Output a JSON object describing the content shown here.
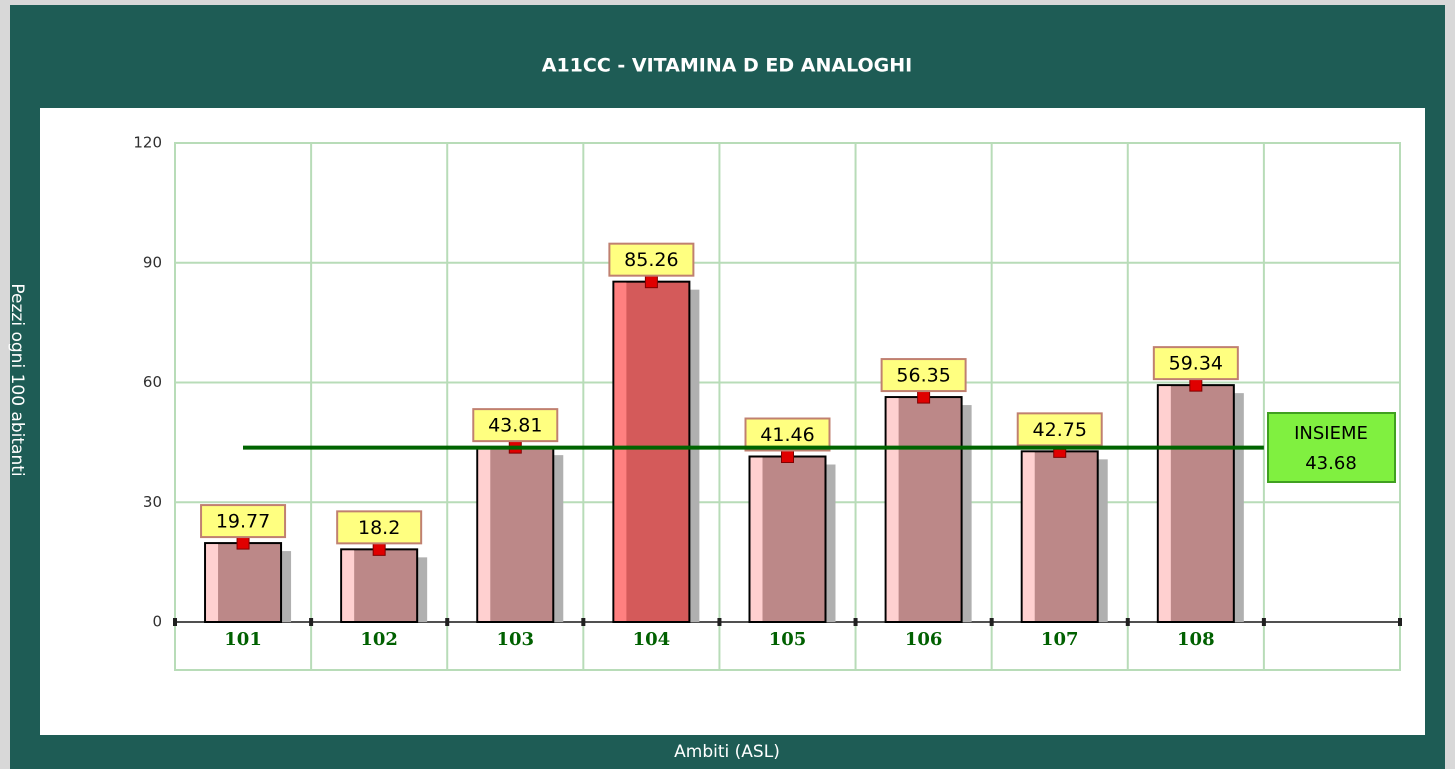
{
  "chart_data": {
    "type": "bar",
    "title": "A11CC - VITAMINA D ED ANALOGHI",
    "y_label": "Pezzi ogni 100 abitanti",
    "x_label": "Ambiti (ASL)",
    "categories": [
      "101",
      "102",
      "103",
      "104",
      "105",
      "106",
      "107",
      "108"
    ],
    "values": [
      19.77,
      18.2,
      43.81,
      85.26,
      41.46,
      56.35,
      42.75,
      59.34
    ],
    "colors": [
      "#bc8888",
      "#bc8888",
      "#bc8888",
      "#d45a5a",
      "#bc8888",
      "#bc8888",
      "#bc8888",
      "#bc8888"
    ],
    "reference": {
      "name": "INSIEME",
      "value": 43.68,
      "color": "#006400"
    },
    "ylim": [
      0,
      120
    ],
    "yticks": [
      0,
      30,
      60,
      90,
      120
    ],
    "grid": true
  }
}
